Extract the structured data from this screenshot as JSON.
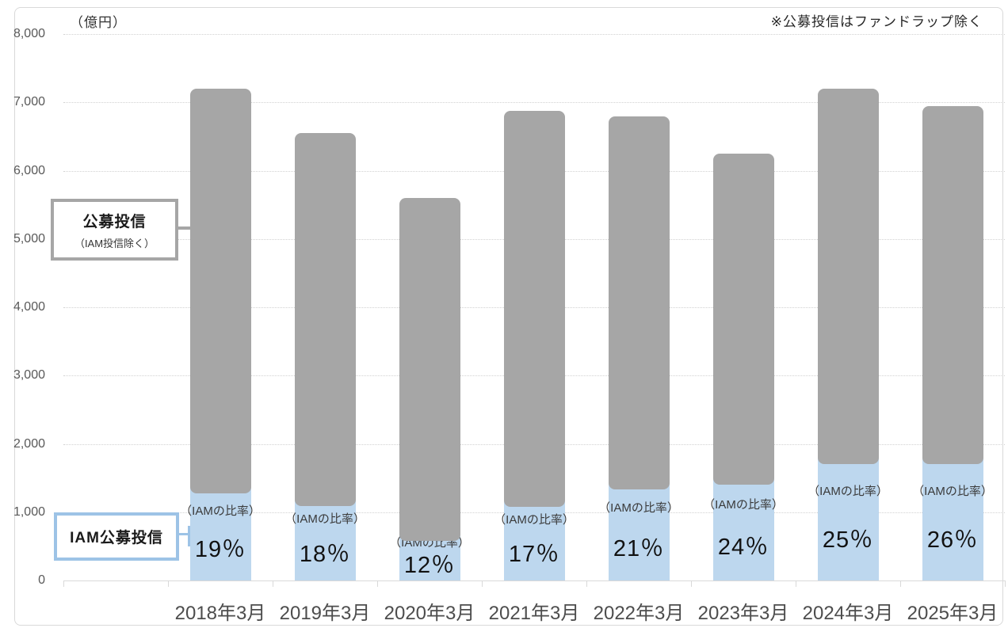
{
  "note": "※公募投信はファンドラップ除く",
  "unit_label": "（億円）",
  "legend": {
    "gray": {
      "line1": "公募投信",
      "line2": "（IAM投信除く）"
    },
    "blue": {
      "label": "IAM公募投信"
    }
  },
  "colors": {
    "gray_bar": "#a6a6a6",
    "blue_bar": "#bdd7ee",
    "blue_border": "#9dc3e6",
    "axis": "#d9d9d9"
  },
  "chart_data": {
    "type": "bar",
    "stacked": true,
    "title": "",
    "xlabel": "",
    "ylabel": "（億円）",
    "ylim": [
      0,
      8000
    ],
    "ytick_step": 1000,
    "yticks": [
      "0",
      "1,000",
      "2,000",
      "3,000",
      "4,000",
      "5,000",
      "6,000",
      "7,000",
      "8,000"
    ],
    "grid": "dotted-horizontal",
    "legend_position": "left-callout-boxes",
    "categories": [
      "2018年3月",
      "2019年3月",
      "2020年3月",
      "2021年3月",
      "2022年3月",
      "2023年3月",
      "2024年3月",
      "2025年3月"
    ],
    "series": [
      {
        "name": "IAM公募投信",
        "color": "#bdd7ee",
        "values": [
          1370,
          1180,
          670,
          1170,
          1430,
          1500,
          1800,
          1800
        ]
      },
      {
        "name": "公募投信（IAM投信除く）",
        "color": "#a6a6a6",
        "values": [
          5830,
          5370,
          4930,
          5700,
          5370,
          4750,
          5400,
          5140
        ]
      }
    ],
    "totals": [
      7200,
      6550,
      5600,
      6870,
      6800,
      6250,
      7200,
      6940
    ],
    "ratio_label_prefix": "（IAMの比率）",
    "ratio_labels": [
      "19％",
      "18％",
      "12％",
      "17％",
      "21％",
      "24％",
      "25％",
      "26％"
    ]
  }
}
